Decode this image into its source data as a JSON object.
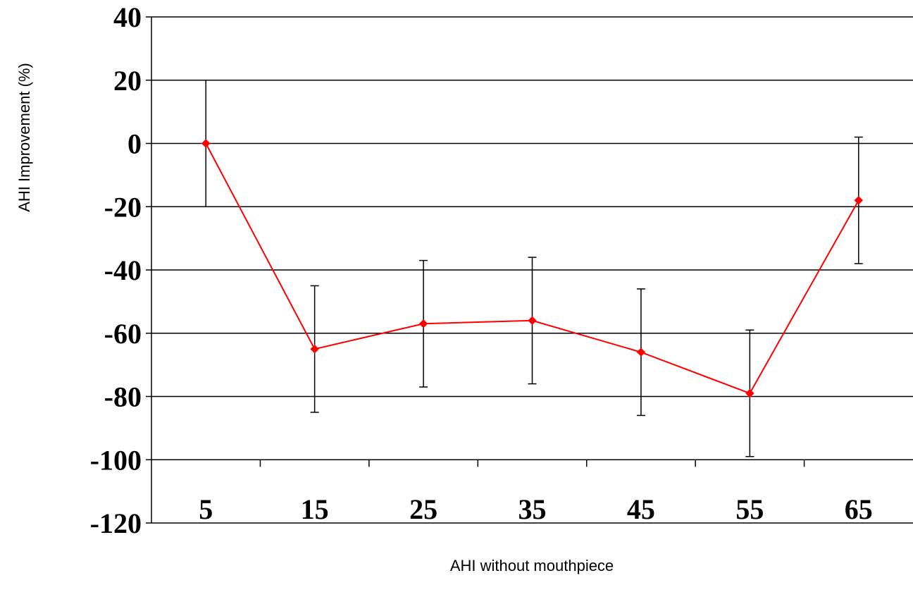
{
  "chart_data": {
    "type": "line",
    "xlabel": "AHI without mouthpiece",
    "ylabel": "AHI Improvement (%)",
    "categories": [
      "5",
      "15",
      "25",
      "35",
      "45",
      "55",
      "65"
    ],
    "series": [
      {
        "values": [
          0,
          -65,
          -57,
          -56,
          -66,
          -79,
          -18
        ],
        "error": [
          20,
          20,
          20,
          20,
          20,
          20,
          20
        ],
        "color": "#ff0000"
      }
    ],
    "ylim": [
      -120,
      40
    ],
    "yticks": [
      40,
      20,
      0,
      -20,
      -40,
      -60,
      -80,
      -100,
      -120
    ],
    "ytick_labels": [
      "40",
      "20",
      "0",
      "-20",
      "-40",
      "-60",
      "-80",
      "-100",
      "-120"
    ],
    "grid": true,
    "legend": "none"
  }
}
